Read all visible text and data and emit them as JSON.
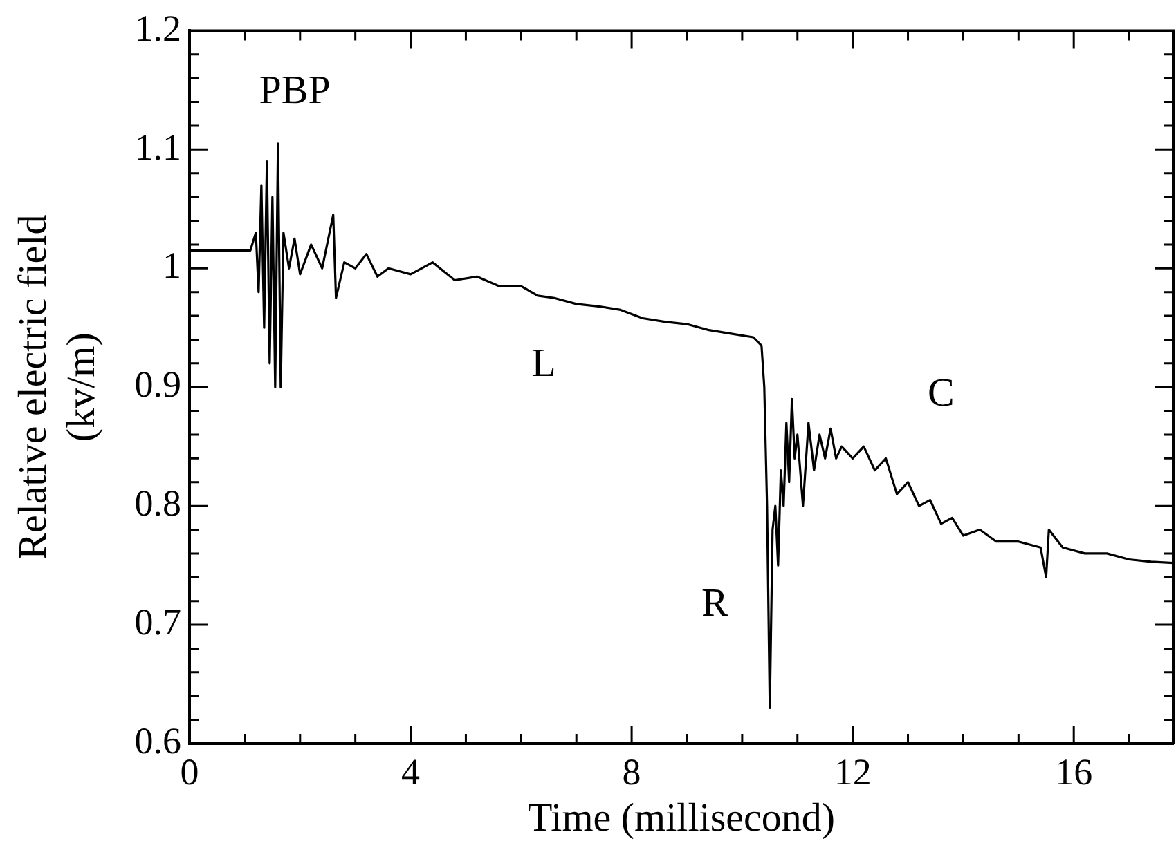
{
  "chart_data": {
    "type": "line",
    "xlabel": "Time (millisecond)",
    "ylabel": "Relative electric field\n(kv/m)",
    "xlim": [
      0,
      17.8
    ],
    "ylim": [
      0.6,
      1.2
    ],
    "xticks": [
      0,
      {
        "value": 1,
        "label": null
      },
      {
        "value": 2,
        "label": null
      },
      {
        "value": 3,
        "label": null
      },
      4,
      {
        "value": 5,
        "label": null
      },
      {
        "value": 6,
        "label": null
      },
      {
        "value": 7,
        "label": null
      },
      8,
      {
        "value": 9,
        "label": null
      },
      {
        "value": 10,
        "label": null
      },
      {
        "value": 11,
        "label": null
      },
      12,
      {
        "value": 13,
        "label": null
      },
      {
        "value": 14,
        "label": null
      },
      {
        "value": 15,
        "label": null
      },
      16,
      {
        "value": 17,
        "label": null
      }
    ],
    "yticks": [
      0.6,
      {
        "value": 0.62,
        "label": null
      },
      {
        "value": 0.64,
        "label": null
      },
      {
        "value": 0.66,
        "label": null
      },
      {
        "value": 0.68,
        "label": null
      },
      0.7,
      {
        "value": 0.72,
        "label": null
      },
      {
        "value": 0.74,
        "label": null
      },
      {
        "value": 0.76,
        "label": null
      },
      {
        "value": 0.78,
        "label": null
      },
      0.8,
      {
        "value": 0.82,
        "label": null
      },
      {
        "value": 0.84,
        "label": null
      },
      {
        "value": 0.86,
        "label": null
      },
      {
        "value": 0.88,
        "label": null
      },
      0.9,
      {
        "value": 0.92,
        "label": null
      },
      {
        "value": 0.94,
        "label": null
      },
      {
        "value": 0.96,
        "label": null
      },
      {
        "value": 0.98,
        "label": null
      },
      1,
      {
        "value": 1.02,
        "label": null
      },
      {
        "value": 1.04,
        "label": null
      },
      {
        "value": 1.06,
        "label": null
      },
      {
        "value": 1.08,
        "label": null
      },
      1.1,
      {
        "value": 1.12,
        "label": null
      },
      {
        "value": 1.14,
        "label": null
      },
      {
        "value": 1.16,
        "label": null
      },
      {
        "value": 1.18,
        "label": null
      },
      1.2
    ],
    "grid": false,
    "legend": false,
    "marker": "none",
    "line_style": "solid",
    "annotations": [
      "PBP",
      "L",
      "R",
      "C"
    ],
    "series": [
      {
        "color": "#000000",
        "x": [
          0,
          1.1,
          1.2,
          1.25,
          1.3,
          1.35,
          1.4,
          1.45,
          1.5,
          1.55,
          1.6,
          1.65,
          1.7,
          1.8,
          1.9,
          2.0,
          2.2,
          2.4,
          2.6,
          2.65,
          2.8,
          3.0,
          3.2,
          3.4,
          3.6,
          4.0,
          4.4,
          4.8,
          5.2,
          5.6,
          6.0,
          6.3,
          6.6,
          7.0,
          7.4,
          7.8,
          8.2,
          8.6,
          9.0,
          9.4,
          9.8,
          10.2,
          10.35,
          10.4,
          10.45,
          10.5,
          10.55,
          10.6,
          10.65,
          10.7,
          10.75,
          10.8,
          10.85,
          10.9,
          10.95,
          11.0,
          11.1,
          11.2,
          11.3,
          11.4,
          11.5,
          11.6,
          11.7,
          11.8,
          12.0,
          12.2,
          12.4,
          12.6,
          12.8,
          13.0,
          13.2,
          13.4,
          13.6,
          13.8,
          14.0,
          14.3,
          14.6,
          15.0,
          15.4,
          15.5,
          15.55,
          15.8,
          16.2,
          16.6,
          17.0,
          17.4,
          17.8
        ],
        "values": [
          1.015,
          1.015,
          1.03,
          0.98,
          1.07,
          0.95,
          1.09,
          0.92,
          1.06,
          0.9,
          1.105,
          0.9,
          1.03,
          1.0,
          1.025,
          0.995,
          1.02,
          1.0,
          1.045,
          0.975,
          1.005,
          1.0,
          1.012,
          0.993,
          1.0,
          0.995,
          1.005,
          0.99,
          0.993,
          0.985,
          0.985,
          0.977,
          0.975,
          0.97,
          0.968,
          0.965,
          0.958,
          0.955,
          0.953,
          0.948,
          0.945,
          0.942,
          0.935,
          0.9,
          0.8,
          0.63,
          0.78,
          0.8,
          0.75,
          0.83,
          0.8,
          0.87,
          0.82,
          0.89,
          0.84,
          0.86,
          0.8,
          0.87,
          0.83,
          0.86,
          0.84,
          0.865,
          0.84,
          0.85,
          0.84,
          0.85,
          0.83,
          0.84,
          0.81,
          0.82,
          0.8,
          0.805,
          0.785,
          0.79,
          0.775,
          0.78,
          0.77,
          0.77,
          0.765,
          0.74,
          0.78,
          0.765,
          0.76,
          0.76,
          0.755,
          0.753,
          0.752
        ]
      }
    ]
  }
}
